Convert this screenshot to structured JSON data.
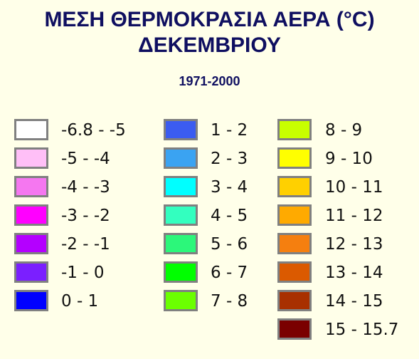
{
  "title": {
    "line1": "ΜΕΣΗ ΘΕΡΜΟΚΡΑΣΙΑ ΑΕΡΑ (°C)",
    "line2": "ΔΕΚΕΜΒΡΙΟΥ"
  },
  "period": "1971-2000",
  "legend": {
    "columns": [
      [
        {
          "label": "-6.8 - -5",
          "color": "#ffffff"
        },
        {
          "label": "-5 - -4",
          "color": "#ffbff7"
        },
        {
          "label": "-4 - -3",
          "color": "#f577f0"
        },
        {
          "label": "-3 - -2",
          "color": "#ff00ff"
        },
        {
          "label": "-2 - -1",
          "color": "#b400ff"
        },
        {
          "label": "-1 - 0",
          "color": "#7b1fff"
        },
        {
          "label": "0 - 1",
          "color": "#0000ff"
        }
      ],
      [
        {
          "label": "1 - 2",
          "color": "#3b5cf0"
        },
        {
          "label": "2 - 3",
          "color": "#3aa3f2"
        },
        {
          "label": "3 - 4",
          "color": "#00ffff"
        },
        {
          "label": "4 - 5",
          "color": "#33ffbf"
        },
        {
          "label": "5 - 6",
          "color": "#2cf77a"
        },
        {
          "label": "6 - 7",
          "color": "#00ff00"
        },
        {
          "label": "7 - 8",
          "color": "#6bff00"
        }
      ],
      [
        {
          "label": "8 - 9",
          "color": "#c8ff00"
        },
        {
          "label": "9 - 10",
          "color": "#ffff00"
        },
        {
          "label": "10 - 11",
          "color": "#ffd000"
        },
        {
          "label": "11 - 12",
          "color": "#ffaa00"
        },
        {
          "label": "12 - 13",
          "color": "#f57f0f"
        },
        {
          "label": "13 - 14",
          "color": "#db5a00"
        },
        {
          "label": "14 - 15",
          "color": "#a83000"
        },
        {
          "label": "15 - 15.7",
          "color": "#7a0000"
        }
      ]
    ]
  }
}
